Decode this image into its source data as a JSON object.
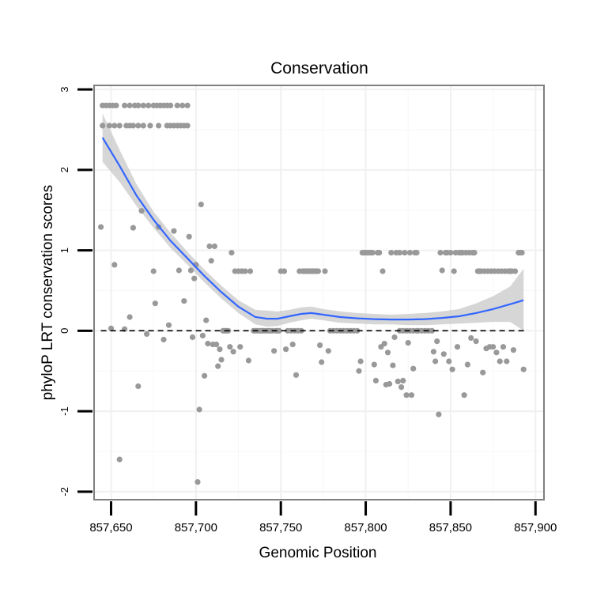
{
  "chart_data": {
    "type": "scatter",
    "title": "Conservation",
    "xlabel": "Genomic Position",
    "ylabel": "phyloP LRT conservation scores",
    "xlim": [
      857640,
      857905
    ],
    "ylim": [
      -2.1,
      3.05
    ],
    "x_ticks": [
      857650,
      857700,
      857750,
      857800,
      857850,
      857900
    ],
    "x_tick_labels": [
      "857,650",
      "857,700",
      "857,750",
      "857,800",
      "857,850",
      "857,900"
    ],
    "y_ticks": [
      -2,
      -1,
      0,
      1,
      2,
      3
    ],
    "y_tick_labels": [
      "-2",
      "-1",
      "0",
      "1",
      "2",
      "3"
    ],
    "x_minor_ticks": [
      857675,
      857725,
      857775,
      857825,
      857875
    ],
    "y_minor_ticks": [
      -1.5,
      -0.5,
      0.5,
      1.5,
      2.5
    ],
    "reference_line": {
      "y": 0,
      "style": "dashed"
    },
    "grid": true,
    "colors": {
      "points": "#999999",
      "smooth": "#3366ff",
      "ribbon": "#cccccc",
      "panel_border": "#7f7f7f",
      "grid": "#f0f0f0"
    },
    "points": [
      [
        857645,
        2.8
      ],
      [
        857647,
        2.8
      ],
      [
        857649,
        2.8
      ],
      [
        857651,
        2.8
      ],
      [
        857653,
        2.8
      ],
      [
        857658,
        2.8
      ],
      [
        857661,
        2.8
      ],
      [
        857664,
        2.8
      ],
      [
        857666,
        2.8
      ],
      [
        857669,
        2.8
      ],
      [
        857672,
        2.8
      ],
      [
        857675,
        2.8
      ],
      [
        857677,
        2.8
      ],
      [
        857679,
        2.8
      ],
      [
        857681,
        2.8
      ],
      [
        857683,
        2.8
      ],
      [
        857685,
        2.8
      ],
      [
        857689,
        2.8
      ],
      [
        857692,
        2.8
      ],
      [
        857695,
        2.8
      ],
      [
        857645,
        2.55
      ],
      [
        857649,
        2.55
      ],
      [
        857652,
        2.55
      ],
      [
        857655,
        2.55
      ],
      [
        857659,
        2.55
      ],
      [
        857661,
        2.55
      ],
      [
        857663,
        2.55
      ],
      [
        857666,
        2.55
      ],
      [
        857669,
        2.55
      ],
      [
        857673,
        2.55
      ],
      [
        857678,
        2.55
      ],
      [
        857683,
        2.55
      ],
      [
        857685,
        2.55
      ],
      [
        857687,
        2.55
      ],
      [
        857689,
        2.55
      ],
      [
        857691,
        2.55
      ],
      [
        857693,
        2.55
      ],
      [
        857695,
        2.55
      ],
      [
        857644,
        1.29
      ],
      [
        857650,
        0.03
      ],
      [
        857652,
        0.82
      ],
      [
        857655,
        -1.6
      ],
      [
        857658,
        0.02
      ],
      [
        857661,
        0.17
      ],
      [
        857663,
        1.28
      ],
      [
        857666,
        -0.69
      ],
      [
        857668,
        1.49
      ],
      [
        857671,
        -0.04
      ],
      [
        857675,
        0.74
      ],
      [
        857676,
        0.34
      ],
      [
        857678,
        1.29
      ],
      [
        857681,
        -0.11
      ],
      [
        857684,
        0.07
      ],
      [
        857687,
        1.24
      ],
      [
        857690,
        0.75
      ],
      [
        857693,
        0.37
      ],
      [
        857696,
        1.17
      ],
      [
        857697,
        0.75
      ],
      [
        857698,
        -0.08
      ],
      [
        857699,
        0.65
      ],
      [
        857700,
        0.82
      ],
      [
        857701,
        -1.88
      ],
      [
        857702,
        -0.98
      ],
      [
        857703,
        1.57
      ],
      [
        857704,
        -0.06
      ],
      [
        857705,
        -0.56
      ],
      [
        857706,
        0.13
      ],
      [
        857707,
        -0.16
      ],
      [
        857708,
        1.05
      ],
      [
        857709,
        0.87
      ],
      [
        857710,
        -0.17
      ],
      [
        857711,
        1.05
      ],
      [
        857712,
        -0.17
      ],
      [
        857713,
        -0.44
      ],
      [
        857714,
        -0.23
      ],
      [
        857715,
        -0.36
      ],
      [
        857716,
        0
      ],
      [
        857717,
        0
      ],
      [
        857718,
        0
      ],
      [
        857719,
        0
      ],
      [
        857720,
        -0.2
      ],
      [
        857721,
        0.97
      ],
      [
        857722,
        -0.26
      ],
      [
        857723,
        0.74
      ],
      [
        857725,
        0.74
      ],
      [
        857726,
        -0.2
      ],
      [
        857727,
        0.74
      ],
      [
        857729,
        0.74
      ],
      [
        857731,
        -0.37
      ],
      [
        857732,
        0.74
      ],
      [
        857734,
        0
      ],
      [
        857735,
        0
      ],
      [
        857736,
        0
      ],
      [
        857737,
        0
      ],
      [
        857738,
        0
      ],
      [
        857739,
        0
      ],
      [
        857740,
        0
      ],
      [
        857741,
        0
      ],
      [
        857742,
        0
      ],
      [
        857743,
        0
      ],
      [
        857744,
        0
      ],
      [
        857745,
        0
      ],
      [
        857746,
        -0.25
      ],
      [
        857747,
        0
      ],
      [
        857748,
        0
      ],
      [
        857749,
        0
      ],
      [
        857750,
        0.74
      ],
      [
        857752,
        0.74
      ],
      [
        857753,
        -0.23
      ],
      [
        857754,
        0
      ],
      [
        857756,
        0
      ],
      [
        857757,
        -0.17
      ],
      [
        857758,
        0
      ],
      [
        857759,
        -0.55
      ],
      [
        857760,
        0
      ],
      [
        857761,
        0.74
      ],
      [
        857762,
        0
      ],
      [
        857763,
        0.74
      ],
      [
        857764,
        0.74
      ],
      [
        857765,
        0.74
      ],
      [
        857766,
        0.74
      ],
      [
        857767,
        0.74
      ],
      [
        857768,
        0.74
      ],
      [
        857769,
        0.74
      ],
      [
        857770,
        0.74
      ],
      [
        857771,
        0.74
      ],
      [
        857772,
        0.74
      ],
      [
        857773,
        -0.18
      ],
      [
        857774,
        -0.39
      ],
      [
        857776,
        0.74
      ],
      [
        857778,
        -0.25
      ],
      [
        857779,
        0
      ],
      [
        857781,
        0
      ],
      [
        857783,
        0
      ],
      [
        857785,
        0
      ],
      [
        857787,
        0
      ],
      [
        857789,
        0
      ],
      [
        857791,
        0
      ],
      [
        857793,
        0
      ],
      [
        857795,
        0
      ],
      [
        857796,
        -0.5
      ],
      [
        857797,
        -0.38
      ],
      [
        857798,
        0.97
      ],
      [
        857799,
        0.97
      ],
      [
        857800,
        0.97
      ],
      [
        857801,
        0.97
      ],
      [
        857802,
        0.97
      ],
      [
        857803,
        0.97
      ],
      [
        857804,
        0.97
      ],
      [
        857805,
        -0.42
      ],
      [
        857806,
        -0.62
      ],
      [
        857807,
        0.97
      ],
      [
        857808,
        0.97
      ],
      [
        857809,
        -0.2
      ],
      [
        857810,
        0.74
      ],
      [
        857811,
        -0.16
      ],
      [
        857812,
        -0.67
      ],
      [
        857813,
        -0.27
      ],
      [
        857814,
        -0.66
      ],
      [
        857815,
        0.97
      ],
      [
        857816,
        -0.43
      ],
      [
        857817,
        -0.08
      ],
      [
        857818,
        0.97
      ],
      [
        857819,
        -0.63
      ],
      [
        857820,
        0.97
      ],
      [
        857821,
        -0.7
      ],
      [
        857822,
        -0.62
      ],
      [
        857823,
        0.97
      ],
      [
        857824,
        -0.8
      ],
      [
        857825,
        -0.15
      ],
      [
        857826,
        0.97
      ],
      [
        857827,
        -0.8
      ],
      [
        857828,
        -0.47
      ],
      [
        857829,
        0.97
      ],
      [
        857830,
        0.97
      ],
      [
        857820,
        0
      ],
      [
        857822,
        0
      ],
      [
        857824,
        0
      ],
      [
        857826,
        0
      ],
      [
        857828,
        0
      ],
      [
        857830,
        0
      ],
      [
        857831,
        0
      ],
      [
        857833,
        0
      ],
      [
        857835,
        0
      ],
      [
        857837,
        0
      ],
      [
        857839,
        0
      ],
      [
        857840,
        -0.26
      ],
      [
        857841,
        -0.38
      ],
      [
        857842,
        -0.13
      ],
      [
        857843,
        -1.04
      ],
      [
        857844,
        0.97
      ],
      [
        857845,
        0.75
      ],
      [
        857846,
        -0.29
      ],
      [
        857847,
        0.97
      ],
      [
        857848,
        0.97
      ],
      [
        857849,
        -0.38
      ],
      [
        857850,
        0.97
      ],
      [
        857851,
        -0.48
      ],
      [
        857852,
        0.74
      ],
      [
        857853,
        0.97
      ],
      [
        857854,
        -0.2
      ],
      [
        857855,
        0.97
      ],
      [
        857856,
        0.97
      ],
      [
        857857,
        0.97
      ],
      [
        857858,
        -0.8
      ],
      [
        857859,
        0.97
      ],
      [
        857860,
        -0.42
      ],
      [
        857861,
        0.97
      ],
      [
        857862,
        -0.09
      ],
      [
        857863,
        0.97
      ],
      [
        857864,
        0.97
      ],
      [
        857865,
        -0.13
      ],
      [
        857866,
        0.74
      ],
      [
        857867,
        0.74
      ],
      [
        857868,
        0.74
      ],
      [
        857869,
        -0.52
      ],
      [
        857870,
        0.74
      ],
      [
        857871,
        -0.22
      ],
      [
        857872,
        0.74
      ],
      [
        857873,
        -0.2
      ],
      [
        857874,
        0.74
      ],
      [
        857875,
        -0.2
      ],
      [
        857876,
        0.74
      ],
      [
        857877,
        -0.27
      ],
      [
        857878,
        0.74
      ],
      [
        857879,
        -0.38
      ],
      [
        857880,
        0.74
      ],
      [
        857881,
        -0.2
      ],
      [
        857882,
        0.74
      ],
      [
        857883,
        -0.38
      ],
      [
        857884,
        0.74
      ],
      [
        857885,
        0.74
      ],
      [
        857886,
        0.74
      ],
      [
        857887,
        -0.24
      ],
      [
        857888,
        0.74
      ],
      [
        857890,
        0.97
      ],
      [
        857891,
        0.97
      ],
      [
        857892,
        0.97
      ],
      [
        857893,
        -0.48
      ]
    ],
    "smooth": {
      "x": [
        857645,
        857655,
        857665,
        857675,
        857685,
        857695,
        857705,
        857715,
        857725,
        857735,
        857742,
        857748,
        857755,
        857762,
        857768,
        857775,
        857785,
        857795,
        857805,
        857815,
        857825,
        857835,
        857845,
        857855,
        857865,
        857875,
        857885,
        857893
      ],
      "y": [
        2.4,
        2.05,
        1.68,
        1.38,
        1.12,
        0.9,
        0.68,
        0.48,
        0.3,
        0.17,
        0.15,
        0.15,
        0.18,
        0.21,
        0.22,
        0.2,
        0.17,
        0.155,
        0.145,
        0.14,
        0.14,
        0.145,
        0.16,
        0.18,
        0.22,
        0.27,
        0.33,
        0.38
      ],
      "lower": [
        2.1,
        1.85,
        1.55,
        1.28,
        1.03,
        0.82,
        0.6,
        0.4,
        0.22,
        0.08,
        0.05,
        0.06,
        0.1,
        0.13,
        0.15,
        0.13,
        0.1,
        0.09,
        0.08,
        0.08,
        0.07,
        0.07,
        0.08,
        0.09,
        0.1,
        0.11,
        0.11,
        0.0
      ],
      "upper": [
        2.7,
        2.25,
        1.82,
        1.48,
        1.22,
        0.98,
        0.76,
        0.56,
        0.38,
        0.26,
        0.25,
        0.24,
        0.26,
        0.29,
        0.3,
        0.27,
        0.24,
        0.22,
        0.21,
        0.2,
        0.21,
        0.22,
        0.24,
        0.27,
        0.34,
        0.43,
        0.55,
        0.77
      ]
    }
  }
}
